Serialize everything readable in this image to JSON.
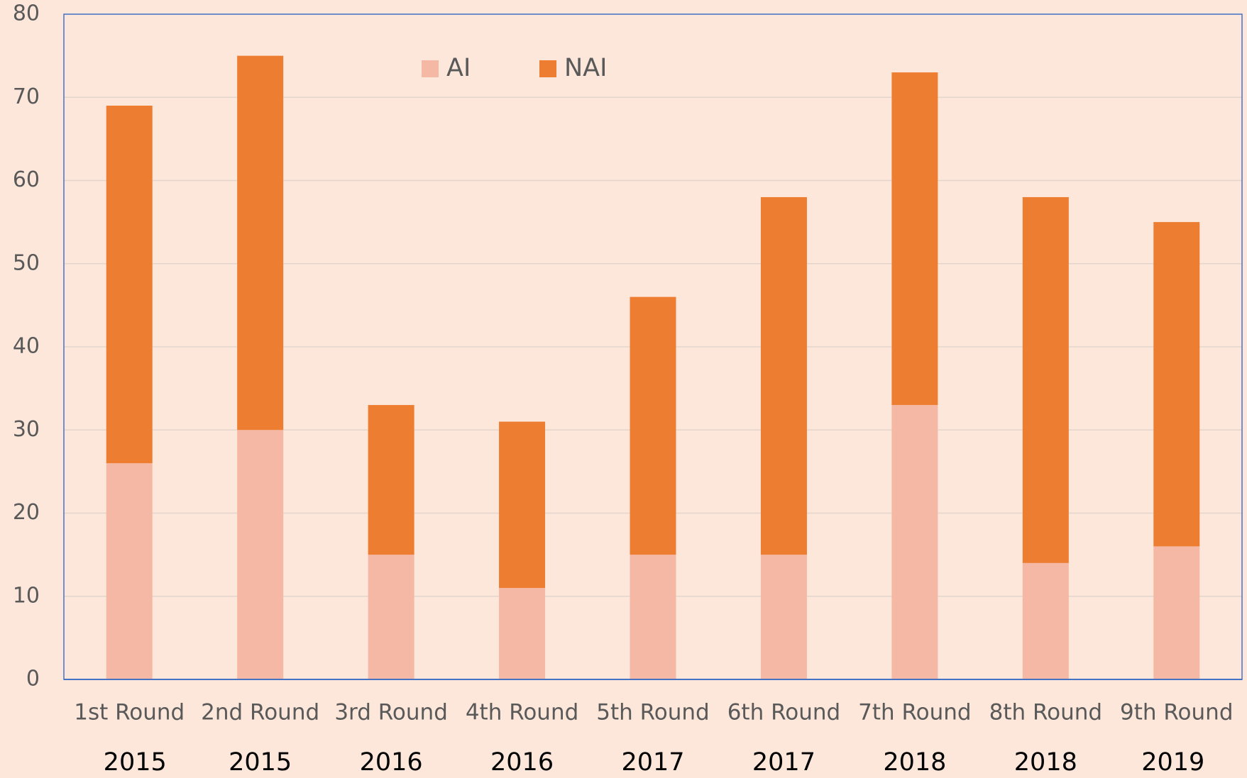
{
  "chart_data": {
    "type": "stacked_bar",
    "categories": [
      "1st Round",
      "2nd Round",
      "3rd Round",
      "4th Round",
      "5th Round",
      "6th Round",
      "7th Round",
      "8th Round",
      "9th Round"
    ],
    "years": [
      "2015",
      "2015",
      "2016",
      "2016",
      "2017",
      "2017",
      "2018",
      "2018",
      "2019"
    ],
    "series": [
      {
        "name": "AI",
        "color": "#f5b8a4",
        "values": [
          26,
          30,
          15,
          11,
          15,
          15,
          33,
          14,
          16
        ]
      },
      {
        "name": "NAI",
        "color": "#ed7d31",
        "values": [
          43,
          45,
          18,
          20,
          31,
          43,
          40,
          44,
          39
        ]
      }
    ],
    "ylim": [
      0,
      80
    ],
    "yticks": [
      0,
      10,
      20,
      30,
      40,
      50,
      60,
      70,
      80
    ],
    "grid": true,
    "legend": "top"
  }
}
